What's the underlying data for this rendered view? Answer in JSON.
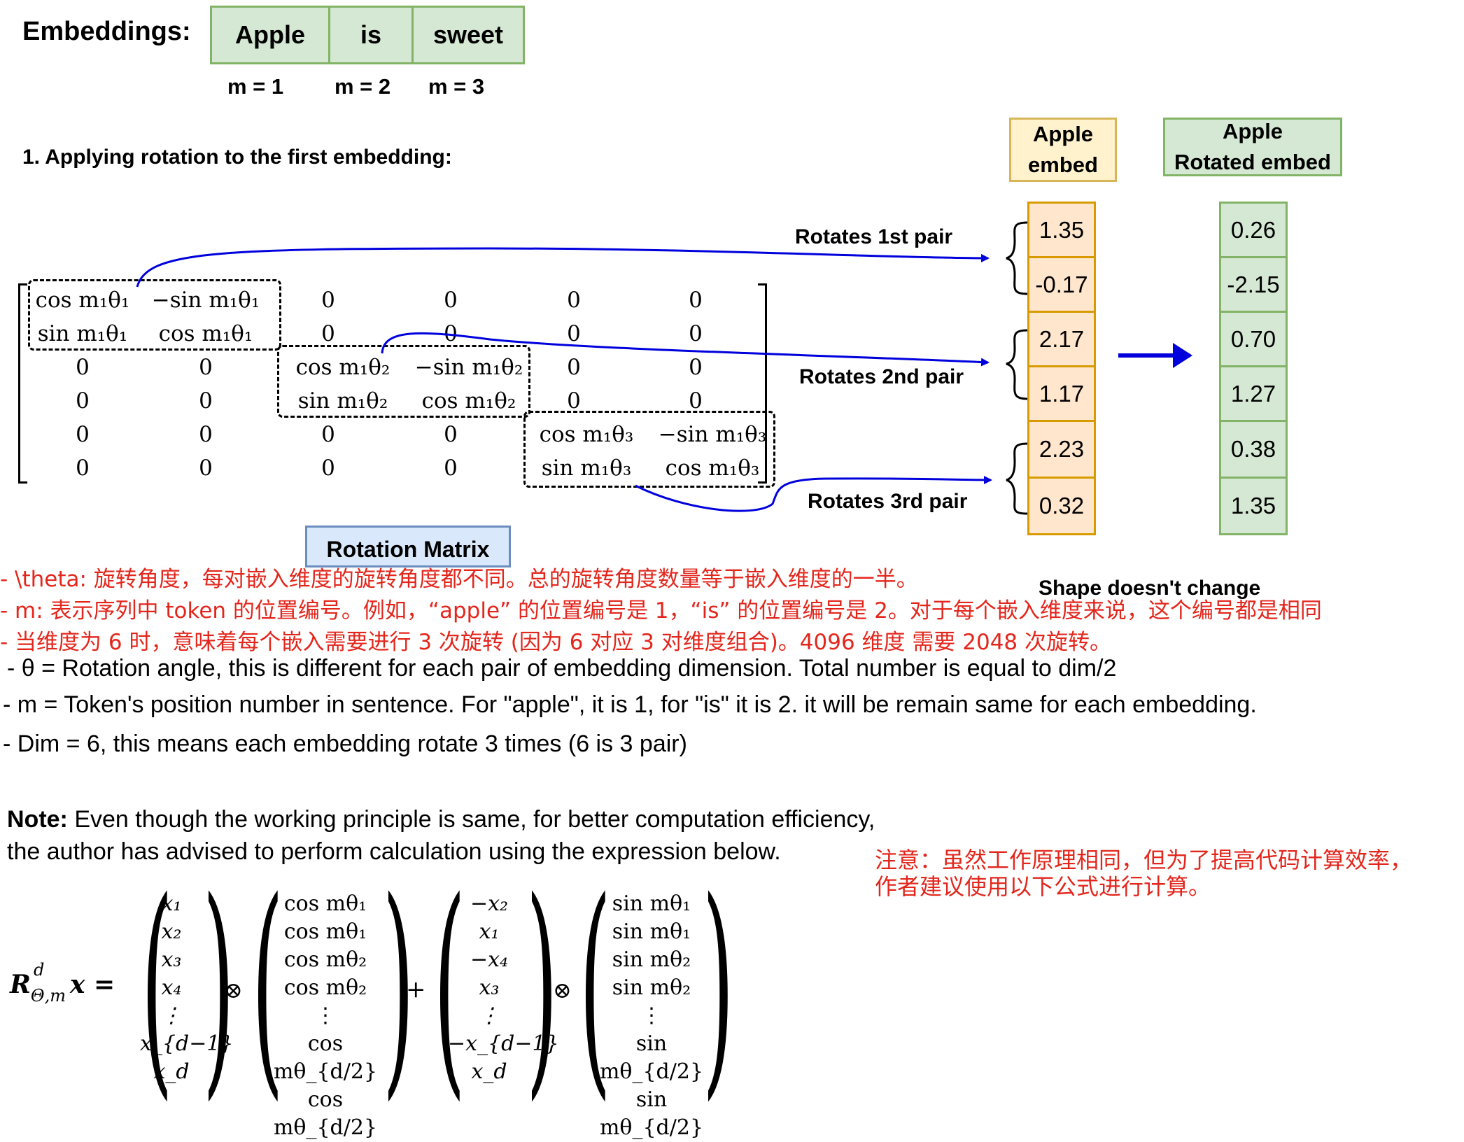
{
  "embeddings": {
    "label": "Embeddings:",
    "tokens": [
      "Apple",
      "is",
      "sweet"
    ],
    "positions": [
      "m = 1",
      "m = 2",
      "m = 3"
    ]
  },
  "step_title": "1. Applying rotation to the first embedding:",
  "columns": {
    "input_header": [
      "Apple",
      "embed"
    ],
    "output_header": [
      "Apple",
      "Rotated embed"
    ]
  },
  "input_embed": [
    "1.35",
    "-0.17",
    "2.17",
    "1.17",
    "2.23",
    "0.32"
  ],
  "rotated_embed": [
    "0.26",
    "-2.15",
    "0.70",
    "1.27",
    "0.38",
    "1.35"
  ],
  "pair_labels": [
    "Rotates 1st pair",
    "Rotates 2nd pair",
    "Rotates 3rd pair"
  ],
  "rotation_matrix": {
    "label": "Rotation Matrix",
    "rows": [
      [
        "cos m₁θ₁",
        "−sin m₁θ₁",
        "0",
        "0",
        "0",
        "0"
      ],
      [
        "sin m₁θ₁",
        "cos m₁θ₁",
        "0",
        "0",
        "0",
        "0"
      ],
      [
        "0",
        "0",
        "cos m₁θ₂",
        "−sin m₁θ₂",
        "0",
        "0"
      ],
      [
        "0",
        "0",
        "sin m₁θ₂",
        "cos m₁θ₂",
        "0",
        "0"
      ],
      [
        "0",
        "0",
        "0",
        "0",
        "cos m₁θ₃",
        "−sin m₁θ₃"
      ],
      [
        "0",
        "0",
        "0",
        "0",
        "sin m₁θ₃",
        "cos m₁θ₃"
      ]
    ]
  },
  "shape_note": "Shape doesn't change",
  "chinese_notes": [
    "- \\theta: 旋转角度，每对嵌入维度的旋转角度都不同。总的旋转角度数量等于嵌入维度的一半。",
    "- m: 表示序列中 token 的位置编号。例如，“apple” 的位置编号是 1，“is” 的位置编号是 2。对于每个嵌入维度来说，这个编号都是相同",
    "- 当维度为 6 时，意味着每个嵌入需要进行 3 次旋转 (因为 6 对应 3 对维度组合)。4096 维度 需要 2048 次旋转。"
  ],
  "english_notes": [
    "- θ = Rotation angle, this is different for each pair of embedding dimension. Total number is equal to dim/2",
    "- m = Token's position number in sentence. For \"apple\", it is 1, for \"is\" it is 2. it will be remain same for each embedding.",
    "- Dim = 6, this means each embedding rotate 3 times (6 is 3 pair)"
  ],
  "note": {
    "label": "Note:",
    "line1": " Even though the working principle is same, for better computation efficiency,",
    "line2": "the author has advised to perform calculation using the expression below.",
    "cn_line1": "注意：虽然工作原理相同，但为了提高代码计算效率，",
    "cn_line2": "作者建议使用以下公式进行计算。"
  },
  "formula": {
    "lhs": "R",
    "lhs_sup": "d",
    "lhs_sub": "Θ,m",
    "lhs_x": "x =",
    "vec1": [
      "x₁",
      "x₂",
      "x₃",
      "x₄",
      "⋮",
      "x_{d−1}",
      "x_d"
    ],
    "vec2": [
      "cos mθ₁",
      "cos mθ₁",
      "cos mθ₂",
      "cos mθ₂",
      "⋮",
      "cos mθ_{d/2}",
      "cos mθ_{d/2}"
    ],
    "vec3": [
      "−x₂",
      "x₁",
      "−x₄",
      "x₃",
      "⋮",
      "−x_{d−1}",
      "x_d"
    ],
    "vec4": [
      "sin mθ₁",
      "sin mθ₁",
      "sin mθ₂",
      "sin mθ₂",
      "⋮",
      "sin mθ_{d/2}",
      "sin mθ_{d/2}"
    ],
    "op_otimes": "⊗",
    "op_plus": "+"
  },
  "colors": {
    "green_fill": "#d5e8d4",
    "green_border": "#82b366",
    "yellow_fill": "#fff2cc",
    "yellow_border": "#d6b656",
    "orange_fill": "#ffe6cc",
    "orange_border": "#d79b00",
    "blue_label_fill": "#dae8fc",
    "blue_label_border": "#6c8ebf",
    "arrow": "#0000dd",
    "red_text": "#e3261c"
  }
}
